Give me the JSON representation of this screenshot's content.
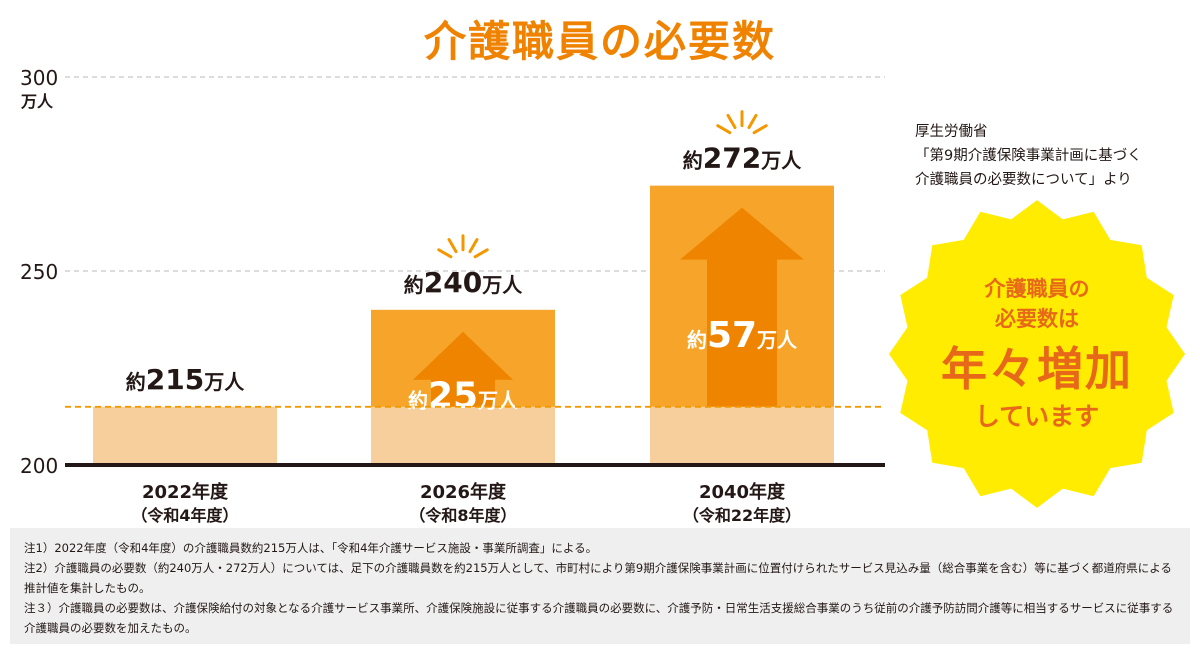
{
  "title": "介護職員の必要数",
  "source": {
    "line1": "厚生労働省",
    "line2": "「第9期介護保険事業計画に基づく",
    "line3": "介護職員の必要数について」より"
  },
  "badge": {
    "line1": "介護職員の",
    "line2": "必要数は",
    "big": "年々増加",
    "line4": "しています"
  },
  "chart_data": {
    "type": "bar",
    "y_unit_label": "万人",
    "ylim": [
      200,
      300
    ],
    "yticks": [
      {
        "value": 200,
        "label": "200"
      },
      {
        "value": 250,
        "label": "250"
      },
      {
        "value": 300,
        "label": "300"
      }
    ],
    "baseline_reference": 215,
    "categories": [
      {
        "label": "2022年度",
        "sublabel": "（令和4年度）"
      },
      {
        "label": "2026年度",
        "sublabel": "（令和8年度）"
      },
      {
        "label": "2040年度",
        "sublabel": "（令和22年度）"
      }
    ],
    "values": [
      215,
      240,
      272
    ],
    "total_labels": [
      {
        "prefix": "約",
        "number": "215",
        "suffix": "万人"
      },
      {
        "prefix": "約",
        "number": "240",
        "suffix": "万人"
      },
      {
        "prefix": "約",
        "number": "272",
        "suffix": "万人"
      }
    ],
    "increase_values": [
      0,
      25,
      57
    ],
    "increase_labels": [
      null,
      {
        "prefix": "約",
        "number": "25",
        "suffix": "万人"
      },
      {
        "prefix": "約",
        "number": "57",
        "suffix": "万人"
      }
    ],
    "colors": {
      "base_segment": "#f7cf9c",
      "increase_segment": "#f6a52a",
      "arrow": "#ef8400",
      "increase_text": "#ffffff",
      "axis": "#231815",
      "grid": "#c8c8c8",
      "reference_line": "#f39800",
      "burst": "#f39800"
    },
    "grid": true
  },
  "notes": [
    "注1）2022年度（令和4年度）の介護職員数約215万人は、「令和4年介護サービス施設・事業所調査」による。",
    "注2）介護職員の必要数（約240万人・272万人）については、足下の介護職員数を約215万人として、市町村により第9期介護保険事業計画に位置付けられたサービス見込み量（総合事業を含む）等に基づく都道府県による推計値を集計したもの。",
    "注３）介護職員の必要数は、介護保険給付の対象となる介護サービス事業所、介護保険施設に従事する介護職員の必要数に、介護予防・日常生活支援総合事業のうち従前の介護予防訪問介護等に相当するサービスに従事する介護職員の必要数を加えたもの。"
  ]
}
